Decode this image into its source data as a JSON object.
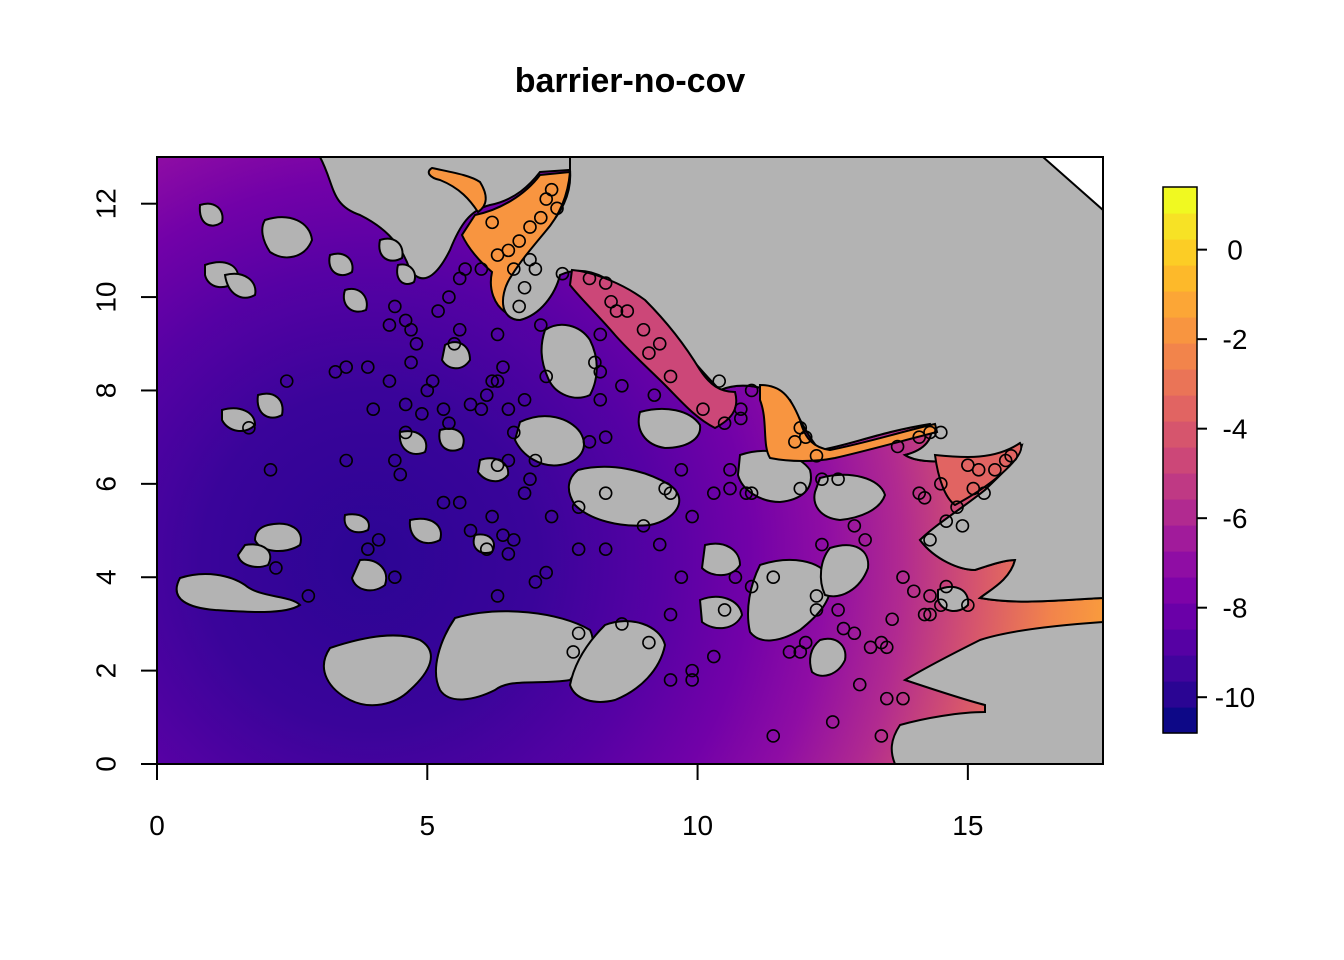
{
  "title": "barrier-no-cov",
  "chart_data": {
    "type": "heatmap",
    "title": "barrier-no-cov",
    "xlim": [
      0,
      17.5
    ],
    "ylim": [
      0,
      13
    ],
    "x_ticks": [
      "0",
      "5",
      "10",
      "15"
    ],
    "y_ticks": [
      "0",
      "2",
      "4",
      "6",
      "8",
      "10",
      "12"
    ],
    "colorbar": {
      "range": [
        -10.8,
        1.4
      ],
      "ticks": [
        "0",
        "-2",
        "-4",
        "-6",
        "-8",
        "-10"
      ],
      "palette": [
        "#0d0887",
        "#2a0593",
        "#41049d",
        "#5601a4",
        "#6a00a8",
        "#7e03a8",
        "#8f0da4",
        "#a11b9b",
        "#b12a90",
        "#bf3984",
        "#cc4778",
        "#d6556d",
        "#e16462",
        "#ea7457",
        "#f2844b",
        "#f89540",
        "#fca636",
        "#fdb92a",
        "#fccd25",
        "#f7e225",
        "#f0f921"
      ]
    },
    "land_color": "#bebebe",
    "point_style": "open-circle",
    "field_pattern": "low values (about -10) in the south-west open water, rising to about -1 at the northern fjord heads",
    "points": [
      [
        7.3,
        12.3
      ],
      [
        7.2,
        12.1
      ],
      [
        7.4,
        11.9
      ],
      [
        7.1,
        11.7
      ],
      [
        6.9,
        11.5
      ],
      [
        6.7,
        11.2
      ],
      [
        6.5,
        11.0
      ],
      [
        6.9,
        10.8
      ],
      [
        7.0,
        10.6
      ],
      [
        6.6,
        10.6
      ],
      [
        6.2,
        11.6
      ],
      [
        6.3,
        10.9
      ],
      [
        6.0,
        10.6
      ],
      [
        5.7,
        10.6
      ],
      [
        6.8,
        10.2
      ],
      [
        6.7,
        9.8
      ],
      [
        5.6,
        10.4
      ],
      [
        5.4,
        10.0
      ],
      [
        5.2,
        9.7
      ],
      [
        5.6,
        9.3
      ],
      [
        5.5,
        9.0
      ],
      [
        6.3,
        9.2
      ],
      [
        4.4,
        9.8
      ],
      [
        4.3,
        9.4
      ],
      [
        4.6,
        9.5
      ],
      [
        4.7,
        9.3
      ],
      [
        4.8,
        9.0
      ],
      [
        4.7,
        8.6
      ],
      [
        5.1,
        8.2
      ],
      [
        5.0,
        8.0
      ],
      [
        4.6,
        7.7
      ],
      [
        4.9,
        7.5
      ],
      [
        4.6,
        7.1
      ],
      [
        4.3,
        8.2
      ],
      [
        3.9,
        8.5
      ],
      [
        3.5,
        8.5
      ],
      [
        3.3,
        8.4
      ],
      [
        4.0,
        7.6
      ],
      [
        5.3,
        7.6
      ],
      [
        5.4,
        7.3
      ],
      [
        5.8,
        7.7
      ],
      [
        6.0,
        7.6
      ],
      [
        6.1,
        7.9
      ],
      [
        6.2,
        8.2
      ],
      [
        6.4,
        8.5
      ],
      [
        6.3,
        8.2
      ],
      [
        6.5,
        7.6
      ],
      [
        6.8,
        7.8
      ],
      [
        7.2,
        8.3
      ],
      [
        7.1,
        9.4
      ],
      [
        6.6,
        7.1
      ],
      [
        6.3,
        6.4
      ],
      [
        6.5,
        6.5
      ],
      [
        6.9,
        6.1
      ],
      [
        7.0,
        6.5
      ],
      [
        4.4,
        6.5
      ],
      [
        4.5,
        6.2
      ],
      [
        3.5,
        6.5
      ],
      [
        2.1,
        6.3
      ],
      [
        1.7,
        7.2
      ],
      [
        2.4,
        8.2
      ],
      [
        4.1,
        4.8
      ],
      [
        3.9,
        4.6
      ],
      [
        4.4,
        4.0
      ],
      [
        2.2,
        4.2
      ],
      [
        2.8,
        3.6
      ],
      [
        5.3,
        5.6
      ],
      [
        5.6,
        5.6
      ],
      [
        5.8,
        5.0
      ],
      [
        6.2,
        5.3
      ],
      [
        6.4,
        4.9
      ],
      [
        6.6,
        4.8
      ],
      [
        6.1,
        4.6
      ],
      [
        6.5,
        4.5
      ],
      [
        6.3,
        3.6
      ],
      [
        7.0,
        3.9
      ],
      [
        7.2,
        4.1
      ],
      [
        6.8,
        5.8
      ],
      [
        7.3,
        5.3
      ],
      [
        7.8,
        5.5
      ],
      [
        8.3,
        5.8
      ],
      [
        7.8,
        4.6
      ],
      [
        8.3,
        4.6
      ],
      [
        7.8,
        2.8
      ],
      [
        7.7,
        2.4
      ],
      [
        8.6,
        3.0
      ],
      [
        9.0,
        5.1
      ],
      [
        9.3,
        4.7
      ],
      [
        9.4,
        5.9
      ],
      [
        8.1,
        8.6
      ],
      [
        8.2,
        8.4
      ],
      [
        8.6,
        8.1
      ],
      [
        8.2,
        7.8
      ],
      [
        8.3,
        7.0
      ],
      [
        8.0,
        6.9
      ],
      [
        7.5,
        10.5
      ],
      [
        8.0,
        10.4
      ],
      [
        8.3,
        10.3
      ],
      [
        8.4,
        9.9
      ],
      [
        8.5,
        9.7
      ],
      [
        8.7,
        9.7
      ],
      [
        8.2,
        9.2
      ],
      [
        9.0,
        9.3
      ],
      [
        9.3,
        9.0
      ],
      [
        9.1,
        8.8
      ],
      [
        9.5,
        8.3
      ],
      [
        9.2,
        7.9
      ],
      [
        10.1,
        7.6
      ],
      [
        10.4,
        8.2
      ],
      [
        10.5,
        7.3
      ],
      [
        10.8,
        7.6
      ],
      [
        11.0,
        8.0
      ],
      [
        10.8,
        7.4
      ],
      [
        10.6,
        6.3
      ],
      [
        10.3,
        5.8
      ],
      [
        10.6,
        5.9
      ],
      [
        10.9,
        5.8
      ],
      [
        11.0,
        5.8
      ],
      [
        11.9,
        7.2
      ],
      [
        12.0,
        7.0
      ],
      [
        11.8,
        6.9
      ],
      [
        12.2,
        6.6
      ],
      [
        12.3,
        6.1
      ],
      [
        11.9,
        5.9
      ],
      [
        12.6,
        6.1
      ],
      [
        9.7,
        6.3
      ],
      [
        9.5,
        5.8
      ],
      [
        9.9,
        5.3
      ],
      [
        9.7,
        4.0
      ],
      [
        9.5,
        3.2
      ],
      [
        9.1,
        2.6
      ],
      [
        9.5,
        1.8
      ],
      [
        9.9,
        2.0
      ],
      [
        10.3,
        2.3
      ],
      [
        9.9,
        1.8
      ],
      [
        10.5,
        3.3
      ],
      [
        10.7,
        4.0
      ],
      [
        11.0,
        3.8
      ],
      [
        11.4,
        4.0
      ],
      [
        11.7,
        2.4
      ],
      [
        12.0,
        2.6
      ],
      [
        12.2,
        3.3
      ],
      [
        12.6,
        3.3
      ],
      [
        12.2,
        3.6
      ],
      [
        12.7,
        2.9
      ],
      [
        12.9,
        2.8
      ],
      [
        13.2,
        2.5
      ],
      [
        13.4,
        2.6
      ],
      [
        13.5,
        2.5
      ],
      [
        13.6,
        3.1
      ],
      [
        13.8,
        4.0
      ],
      [
        14.0,
        3.7
      ],
      [
        14.2,
        3.2
      ],
      [
        14.3,
        3.2
      ],
      [
        14.5,
        3.4
      ],
      [
        14.3,
        3.6
      ],
      [
        14.6,
        3.8
      ],
      [
        13.1,
        4.8
      ],
      [
        12.9,
        5.1
      ],
      [
        12.3,
        4.7
      ],
      [
        13.0,
        1.7
      ],
      [
        13.5,
        1.4
      ],
      [
        13.8,
        1.4
      ],
      [
        13.4,
        0.6
      ],
      [
        12.5,
        0.9
      ],
      [
        11.4,
        0.6
      ],
      [
        11.9,
        2.4
      ],
      [
        14.1,
        7.0
      ],
      [
        14.3,
        7.1
      ],
      [
        14.5,
        7.1
      ],
      [
        13.7,
        6.8
      ],
      [
        14.1,
        5.8
      ],
      [
        14.2,
        5.7
      ],
      [
        14.5,
        6.0
      ],
      [
        14.8,
        5.5
      ],
      [
        15.1,
        5.9
      ],
      [
        15.3,
        5.8
      ],
      [
        15.0,
        6.4
      ],
      [
        15.2,
        6.3
      ],
      [
        15.5,
        6.3
      ],
      [
        15.7,
        6.5
      ],
      [
        15.8,
        6.6
      ],
      [
        14.9,
        5.1
      ],
      [
        14.6,
        5.2
      ],
      [
        14.3,
        4.8
      ],
      [
        15.0,
        3.4
      ]
    ]
  }
}
